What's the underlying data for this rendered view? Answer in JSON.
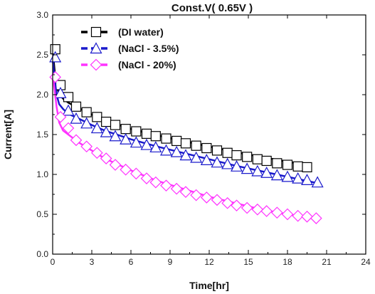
{
  "chart_data": {
    "type": "scatter",
    "title": "Const.V( 0.65V )",
    "xlabel": "Time[hr]",
    "ylabel": "Current[A]",
    "xlim": [
      0,
      24
    ],
    "ylim": [
      0.0,
      3.0
    ],
    "xticks": [
      "0",
      "3",
      "6",
      "9",
      "12",
      "15",
      "18",
      "21",
      "24"
    ],
    "yticks": [
      "0.0",
      "0.5",
      "1.0",
      "1.5",
      "2.0",
      "2.5",
      "3.0"
    ],
    "legend_position": "top-left",
    "series": [
      {
        "name": "(DI water)",
        "color": "#000000",
        "marker": "square",
        "curve": [
          [
            0,
            2.57
          ],
          [
            0.15,
            2.3
          ],
          [
            0.3,
            2.12
          ],
          [
            0.5,
            2.0
          ],
          [
            0.8,
            1.95
          ],
          [
            1.2,
            1.9
          ],
          [
            2,
            1.83
          ],
          [
            3,
            1.75
          ],
          [
            4,
            1.68
          ],
          [
            6,
            1.57
          ],
          [
            8,
            1.49
          ],
          [
            10,
            1.42
          ],
          [
            12,
            1.35
          ],
          [
            14,
            1.28
          ],
          [
            16,
            1.22
          ],
          [
            18,
            1.16
          ],
          [
            19.5,
            1.12
          ]
        ],
        "points": [
          [
            0.2,
            2.57
          ],
          [
            0.6,
            2.12
          ],
          [
            1.2,
            1.97
          ],
          [
            1.8,
            1.85
          ],
          [
            2.6,
            1.78
          ],
          [
            3.4,
            1.72
          ],
          [
            4.1,
            1.66
          ],
          [
            4.8,
            1.62
          ],
          [
            5.6,
            1.57
          ],
          [
            6.4,
            1.54
          ],
          [
            7.2,
            1.51
          ],
          [
            7.9,
            1.48
          ],
          [
            8.7,
            1.45
          ],
          [
            9.5,
            1.42
          ],
          [
            10.2,
            1.39
          ],
          [
            11.0,
            1.36
          ],
          [
            11.8,
            1.33
          ],
          [
            12.6,
            1.3
          ],
          [
            13.4,
            1.27
          ],
          [
            14.1,
            1.24
          ],
          [
            14.9,
            1.22
          ],
          [
            15.7,
            1.19
          ],
          [
            16.4,
            1.17
          ],
          [
            17.2,
            1.14
          ],
          [
            18.0,
            1.12
          ],
          [
            18.8,
            1.1
          ],
          [
            19.5,
            1.09
          ]
        ]
      },
      {
        "name": "(NaCl - 3.5%)",
        "color": "#1a1acc",
        "marker": "triangle",
        "curve": [
          [
            0,
            2.45
          ],
          [
            0.15,
            2.2
          ],
          [
            0.3,
            2.0
          ],
          [
            0.5,
            1.88
          ],
          [
            0.8,
            1.82
          ],
          [
            1.2,
            1.76
          ],
          [
            2,
            1.7
          ],
          [
            3,
            1.62
          ],
          [
            4,
            1.55
          ],
          [
            6,
            1.44
          ],
          [
            8,
            1.35
          ],
          [
            10,
            1.27
          ],
          [
            12,
            1.19
          ],
          [
            14,
            1.11
          ],
          [
            16,
            1.04
          ],
          [
            18,
            0.97
          ],
          [
            20.3,
            0.89
          ]
        ],
        "points": [
          [
            0.2,
            2.47
          ],
          [
            0.6,
            2.02
          ],
          [
            1.2,
            1.8
          ],
          [
            1.8,
            1.7
          ],
          [
            2.6,
            1.64
          ],
          [
            3.4,
            1.58
          ],
          [
            4.1,
            1.53
          ],
          [
            4.8,
            1.48
          ],
          [
            5.6,
            1.44
          ],
          [
            6.4,
            1.4
          ],
          [
            7.2,
            1.37
          ],
          [
            7.9,
            1.34
          ],
          [
            8.7,
            1.3
          ],
          [
            9.5,
            1.28
          ],
          [
            10.2,
            1.24
          ],
          [
            11.0,
            1.21
          ],
          [
            11.8,
            1.18
          ],
          [
            12.6,
            1.15
          ],
          [
            13.4,
            1.13
          ],
          [
            14.1,
            1.1
          ],
          [
            14.9,
            1.07
          ],
          [
            15.7,
            1.04
          ],
          [
            16.4,
            1.02
          ],
          [
            17.2,
            0.99
          ],
          [
            18.0,
            0.97
          ],
          [
            18.8,
            0.95
          ],
          [
            19.5,
            0.93
          ],
          [
            20.3,
            0.9
          ]
        ]
      },
      {
        "name": "(NaCl - 20%)",
        "color": "#ff33ff",
        "marker": "diamond",
        "curve": [
          [
            0,
            2.25
          ],
          [
            0.15,
            2.05
          ],
          [
            0.3,
            1.85
          ],
          [
            0.5,
            1.65
          ],
          [
            0.8,
            1.55
          ],
          [
            1.2,
            1.5
          ],
          [
            2,
            1.4
          ],
          [
            3,
            1.3
          ],
          [
            4,
            1.2
          ],
          [
            6,
            1.05
          ],
          [
            8,
            0.92
          ],
          [
            10,
            0.82
          ],
          [
            12,
            0.72
          ],
          [
            14,
            0.64
          ],
          [
            16,
            0.56
          ],
          [
            18,
            0.5
          ],
          [
            20.2,
            0.45
          ]
        ],
        "points": [
          [
            0.2,
            2.22
          ],
          [
            0.6,
            1.72
          ],
          [
            1.2,
            1.58
          ],
          [
            1.8,
            1.43
          ],
          [
            2.6,
            1.35
          ],
          [
            3.4,
            1.27
          ],
          [
            4.1,
            1.2
          ],
          [
            4.8,
            1.12
          ],
          [
            5.6,
            1.06
          ],
          [
            6.4,
            1.01
          ],
          [
            7.2,
            0.95
          ],
          [
            7.9,
            0.9
          ],
          [
            8.7,
            0.86
          ],
          [
            9.5,
            0.82
          ],
          [
            10.2,
            0.78
          ],
          [
            11.0,
            0.74
          ],
          [
            11.8,
            0.71
          ],
          [
            12.6,
            0.68
          ],
          [
            13.4,
            0.64
          ],
          [
            14.1,
            0.61
          ],
          [
            14.9,
            0.58
          ],
          [
            15.7,
            0.56
          ],
          [
            16.4,
            0.54
          ],
          [
            17.2,
            0.52
          ],
          [
            18.0,
            0.5
          ],
          [
            18.8,
            0.48
          ],
          [
            19.5,
            0.47
          ],
          [
            20.2,
            0.45
          ]
        ]
      }
    ]
  }
}
